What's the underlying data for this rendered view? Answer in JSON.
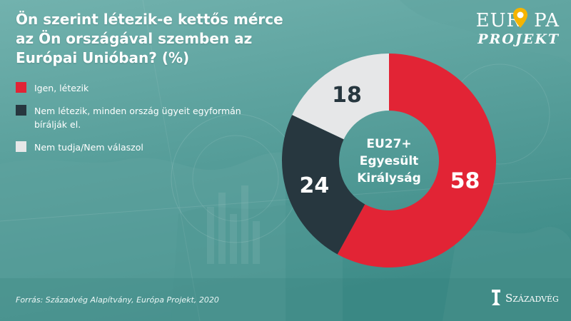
{
  "colors": {
    "bg_top": "#6fb0ad",
    "bg_bottom": "#3f8d8a",
    "red": "#e22435",
    "dark": "#27373f",
    "light": "#e6e7e8"
  },
  "title": "Ön szerint létezik-e kettős mérce az Ön országával szemben az Európai Unióban? (%)",
  "source": "Forrás: Századvég Alapítvány, Európa Projekt, 2020",
  "logo_top": {
    "line1_a": "EUR",
    "line1_b": "PA",
    "line2": "PROJEKT"
  },
  "logo_bottom": "Századvég",
  "chart_data": {
    "type": "pie",
    "donut": true,
    "center_label": [
      "EU27+",
      "Egyesült",
      "Királyság"
    ],
    "legend_position": "left",
    "categories": [
      "Igen, létezik",
      "Nem létezik, minden ország ügyeit egyformán bírálják el.",
      "Nem tudja/Nem válaszol"
    ],
    "values": [
      58,
      24,
      18
    ],
    "colors": [
      "#e22435",
      "#27373f",
      "#e6e7e8"
    ],
    "label_colors": [
      "#ffffff",
      "#ffffff",
      "#27373f"
    ]
  }
}
